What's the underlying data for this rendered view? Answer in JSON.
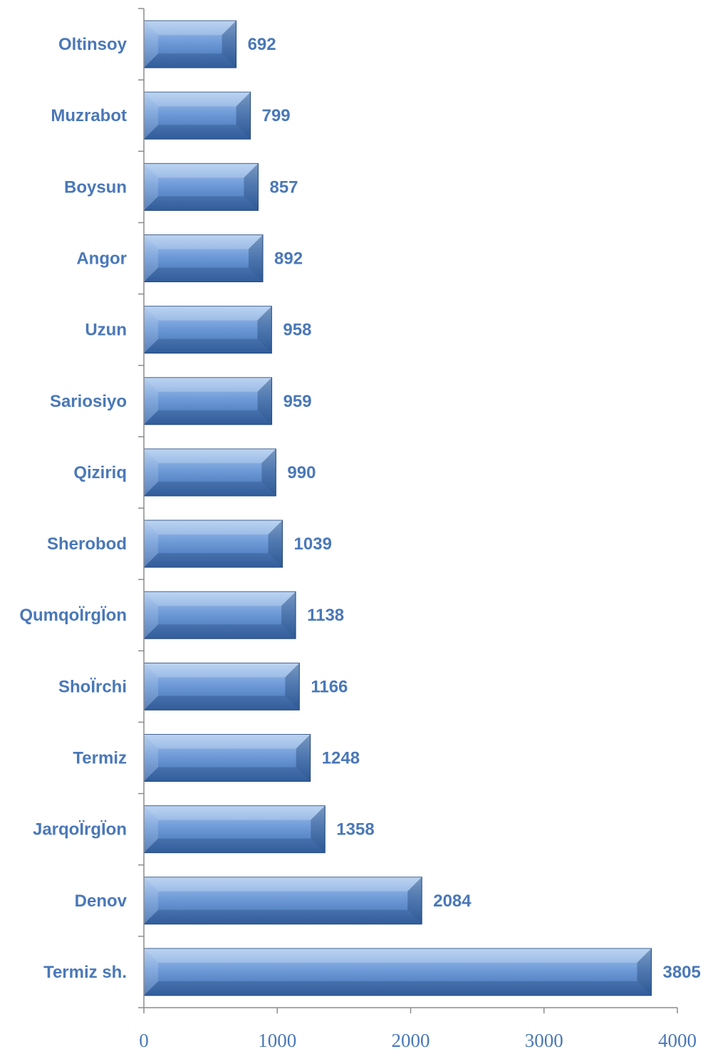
{
  "colors": {
    "bar_light": "#9dbfe8",
    "bar_mid": "#5f8fd0",
    "bar_dark": "#2f5f9e",
    "bar_edge": "#2b4f82",
    "label": "#4a78b8",
    "axis": "#8c8c8c"
  },
  "chart_data": {
    "type": "bar",
    "orientation": "horizontal",
    "categories": [
      "Oltinsoy",
      "Muzrabot",
      "Boysun",
      "Angor",
      "Uzun",
      "Sariosiyo",
      "Qiziriq",
      "Sherobod",
      "QumqoÏrgÏon",
      "ShoÏrchi",
      "Termiz ",
      "JarqoÏrgÏon",
      "Denov",
      "Termiz sh."
    ],
    "values": [
      692,
      799,
      857,
      892,
      958,
      959,
      990,
      1039,
      1138,
      1166,
      1248,
      1358,
      2084,
      3805
    ],
    "data_labels": [
      "692",
      "799",
      "857",
      "892",
      "958",
      "959",
      "990",
      "1039",
      "1138",
      "1166",
      "1248",
      "1358",
      "2084",
      "3805"
    ],
    "xlim": [
      0,
      4000
    ],
    "x_ticks": [
      "0",
      "1000",
      "2000",
      "3000",
      "4000"
    ],
    "grid": false,
    "legend": "none",
    "title": "",
    "xlabel": "",
    "ylabel": ""
  }
}
